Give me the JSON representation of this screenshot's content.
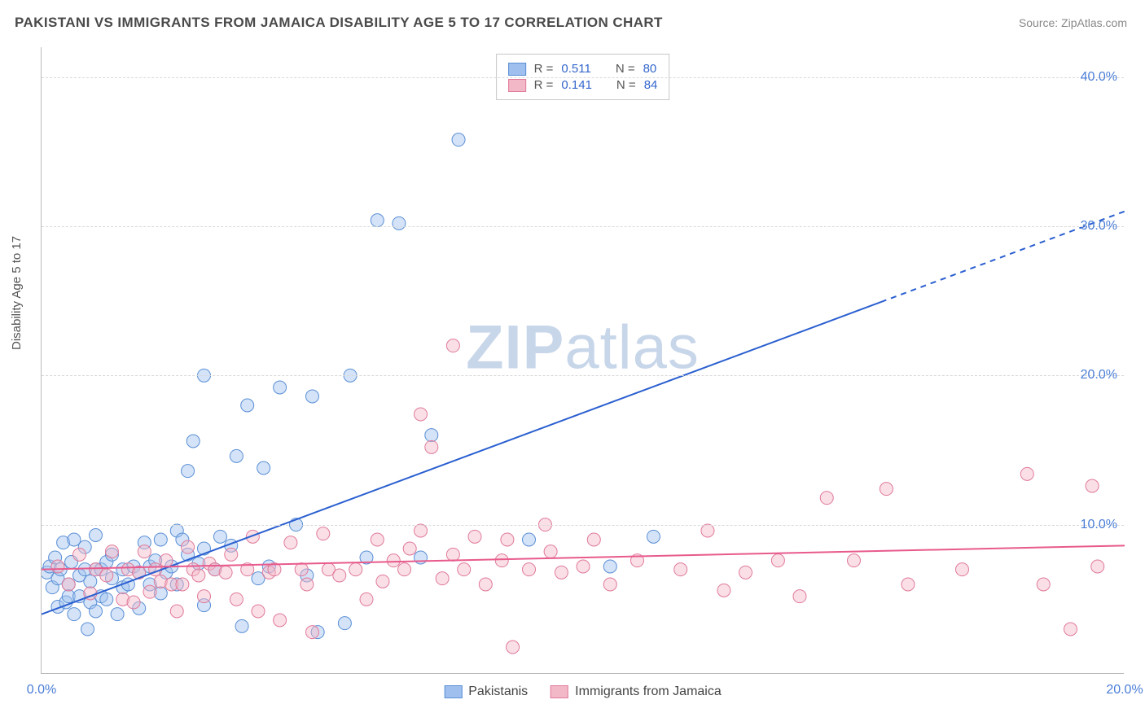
{
  "title": "PAKISTANI VS IMMIGRANTS FROM JAMAICA DISABILITY AGE 5 TO 17 CORRELATION CHART",
  "source": "Source: ZipAtlas.com",
  "ylabel": "Disability Age 5 to 17",
  "watermark_a": "ZIP",
  "watermark_b": "atlas",
  "chart": {
    "type": "scatter",
    "xlim": [
      0,
      20
    ],
    "ylim": [
      0,
      42
    ],
    "xticks": [
      {
        "v": 0,
        "label": "0.0%"
      },
      {
        "v": 20,
        "label": "20.0%"
      }
    ],
    "yticks": [
      {
        "v": 10,
        "label": "10.0%"
      },
      {
        "v": 20,
        "label": "20.0%"
      },
      {
        "v": 30,
        "label": "30.0%"
      },
      {
        "v": 40,
        "label": "40.0%"
      }
    ],
    "grid_color": "#d9d9d9",
    "background_color": "#ffffff",
    "marker_radius": 8,
    "marker_opacity": 0.45,
    "series": [
      {
        "name": "Pakistanis",
        "color_fill": "#9fc0ee",
        "color_stroke": "#5a8fd6",
        "R": "0.511",
        "N": "80",
        "trend": {
          "x1": 0,
          "y1": 4.0,
          "x2": 20,
          "y2": 31.0,
          "solid_until_x": 15.5,
          "color": "#2a5fd0",
          "width": 2
        },
        "points": [
          [
            0.1,
            6.8
          ],
          [
            0.15,
            7.2
          ],
          [
            0.2,
            5.8
          ],
          [
            0.25,
            7.8
          ],
          [
            0.3,
            6.4
          ],
          [
            0.3,
            4.5
          ],
          [
            0.35,
            7.0
          ],
          [
            0.4,
            8.8
          ],
          [
            0.45,
            4.8
          ],
          [
            0.5,
            6.0
          ],
          [
            0.5,
            5.2
          ],
          [
            0.55,
            7.5
          ],
          [
            0.6,
            9.0
          ],
          [
            0.6,
            4.0
          ],
          [
            0.7,
            5.2
          ],
          [
            0.7,
            6.6
          ],
          [
            0.8,
            7.0
          ],
          [
            0.8,
            8.5
          ],
          [
            0.85,
            3.0
          ],
          [
            0.9,
            4.8
          ],
          [
            0.9,
            6.2
          ],
          [
            1.0,
            7.0
          ],
          [
            1.0,
            9.3
          ],
          [
            1.0,
            4.2
          ],
          [
            1.1,
            5.2
          ],
          [
            1.1,
            7.0
          ],
          [
            1.2,
            7.5
          ],
          [
            1.2,
            5.0
          ],
          [
            1.3,
            6.4
          ],
          [
            1.3,
            8.0
          ],
          [
            1.4,
            4.0
          ],
          [
            1.5,
            7.0
          ],
          [
            1.5,
            5.8
          ],
          [
            1.6,
            6.0
          ],
          [
            1.7,
            7.2
          ],
          [
            1.8,
            4.4
          ],
          [
            1.8,
            6.8
          ],
          [
            1.9,
            8.8
          ],
          [
            2.0,
            6.0
          ],
          [
            2.0,
            7.2
          ],
          [
            2.1,
            7.6
          ],
          [
            2.2,
            5.4
          ],
          [
            2.2,
            9.0
          ],
          [
            2.3,
            6.8
          ],
          [
            2.4,
            7.2
          ],
          [
            2.5,
            6.0
          ],
          [
            2.5,
            9.6
          ],
          [
            2.6,
            9.0
          ],
          [
            2.7,
            8.0
          ],
          [
            2.7,
            13.6
          ],
          [
            2.8,
            15.6
          ],
          [
            2.9,
            7.4
          ],
          [
            3.0,
            4.6
          ],
          [
            3.0,
            8.4
          ],
          [
            3.0,
            20.0
          ],
          [
            3.2,
            7.0
          ],
          [
            3.3,
            9.2
          ],
          [
            3.5,
            8.6
          ],
          [
            3.6,
            14.6
          ],
          [
            3.7,
            3.2
          ],
          [
            3.8,
            18.0
          ],
          [
            4.0,
            6.4
          ],
          [
            4.1,
            13.8
          ],
          [
            4.2,
            7.2
          ],
          [
            4.4,
            19.2
          ],
          [
            4.7,
            10.0
          ],
          [
            4.9,
            6.6
          ],
          [
            5.0,
            18.6
          ],
          [
            5.1,
            2.8
          ],
          [
            5.6,
            3.4
          ],
          [
            5.7,
            20.0
          ],
          [
            6.0,
            7.8
          ],
          [
            6.2,
            30.4
          ],
          [
            6.6,
            30.2
          ],
          [
            7.0,
            7.8
          ],
          [
            7.2,
            16.0
          ],
          [
            7.7,
            35.8
          ],
          [
            9.0,
            9.0
          ],
          [
            10.5,
            7.2
          ],
          [
            11.3,
            9.2
          ]
        ]
      },
      {
        "name": "Immigrants from Jamaica",
        "color_fill": "#f3b8c8",
        "color_stroke": "#e07a9a",
        "R": "0.141",
        "N": "84",
        "trend": {
          "x1": 0,
          "y1": 7.0,
          "x2": 20,
          "y2": 8.6,
          "solid_until_x": 20,
          "color": "#e85a8c",
          "width": 2
        },
        "points": [
          [
            0.3,
            7.2
          ],
          [
            0.5,
            6.0
          ],
          [
            0.7,
            8.0
          ],
          [
            0.9,
            5.4
          ],
          [
            1.0,
            7.0
          ],
          [
            1.2,
            6.6
          ],
          [
            1.3,
            8.2
          ],
          [
            1.5,
            5.0
          ],
          [
            1.6,
            7.0
          ],
          [
            1.7,
            4.8
          ],
          [
            1.8,
            6.8
          ],
          [
            1.9,
            8.2
          ],
          [
            2.0,
            5.5
          ],
          [
            2.1,
            7.0
          ],
          [
            2.2,
            6.2
          ],
          [
            2.3,
            7.6
          ],
          [
            2.4,
            6.0
          ],
          [
            2.5,
            4.2
          ],
          [
            2.6,
            6.0
          ],
          [
            2.7,
            8.5
          ],
          [
            2.8,
            7.0
          ],
          [
            2.9,
            6.6
          ],
          [
            3.0,
            5.2
          ],
          [
            3.1,
            7.4
          ],
          [
            3.2,
            7.0
          ],
          [
            3.4,
            6.8
          ],
          [
            3.5,
            8.0
          ],
          [
            3.6,
            5.0
          ],
          [
            3.8,
            7.0
          ],
          [
            3.9,
            9.2
          ],
          [
            4.0,
            4.2
          ],
          [
            4.2,
            6.8
          ],
          [
            4.3,
            7.0
          ],
          [
            4.4,
            3.6
          ],
          [
            4.6,
            8.8
          ],
          [
            4.8,
            7.0
          ],
          [
            4.9,
            6.0
          ],
          [
            5.0,
            2.8
          ],
          [
            5.2,
            9.4
          ],
          [
            5.3,
            7.0
          ],
          [
            5.5,
            6.6
          ],
          [
            5.8,
            7.0
          ],
          [
            6.0,
            5.0
          ],
          [
            6.2,
            9.0
          ],
          [
            6.3,
            6.2
          ],
          [
            6.5,
            7.6
          ],
          [
            6.7,
            7.0
          ],
          [
            6.8,
            8.4
          ],
          [
            7.0,
            9.6
          ],
          [
            7.0,
            17.4
          ],
          [
            7.2,
            15.2
          ],
          [
            7.4,
            6.4
          ],
          [
            7.6,
            8.0
          ],
          [
            7.6,
            22.0
          ],
          [
            7.8,
            7.0
          ],
          [
            8.0,
            9.2
          ],
          [
            8.2,
            6.0
          ],
          [
            8.5,
            7.6
          ],
          [
            8.6,
            9.0
          ],
          [
            8.7,
            1.8
          ],
          [
            9.0,
            7.0
          ],
          [
            9.3,
            10.0
          ],
          [
            9.4,
            8.2
          ],
          [
            9.6,
            6.8
          ],
          [
            10.0,
            7.2
          ],
          [
            10.2,
            9.0
          ],
          [
            10.5,
            6.0
          ],
          [
            11.0,
            7.6
          ],
          [
            11.8,
            7.0
          ],
          [
            12.3,
            9.6
          ],
          [
            12.6,
            5.6
          ],
          [
            13.0,
            6.8
          ],
          [
            13.6,
            7.6
          ],
          [
            14.0,
            5.2
          ],
          [
            14.5,
            11.8
          ],
          [
            15.0,
            7.6
          ],
          [
            15.6,
            12.4
          ],
          [
            16.0,
            6.0
          ],
          [
            17.0,
            7.0
          ],
          [
            18.2,
            13.4
          ],
          [
            18.5,
            6.0
          ],
          [
            19.0,
            3.0
          ],
          [
            19.4,
            12.6
          ],
          [
            19.5,
            7.2
          ]
        ]
      }
    ]
  },
  "legend_top_labels": {
    "R": "R =",
    "N": "N ="
  },
  "legend_bottom": [
    "Pakistanis",
    "Immigrants from Jamaica"
  ]
}
